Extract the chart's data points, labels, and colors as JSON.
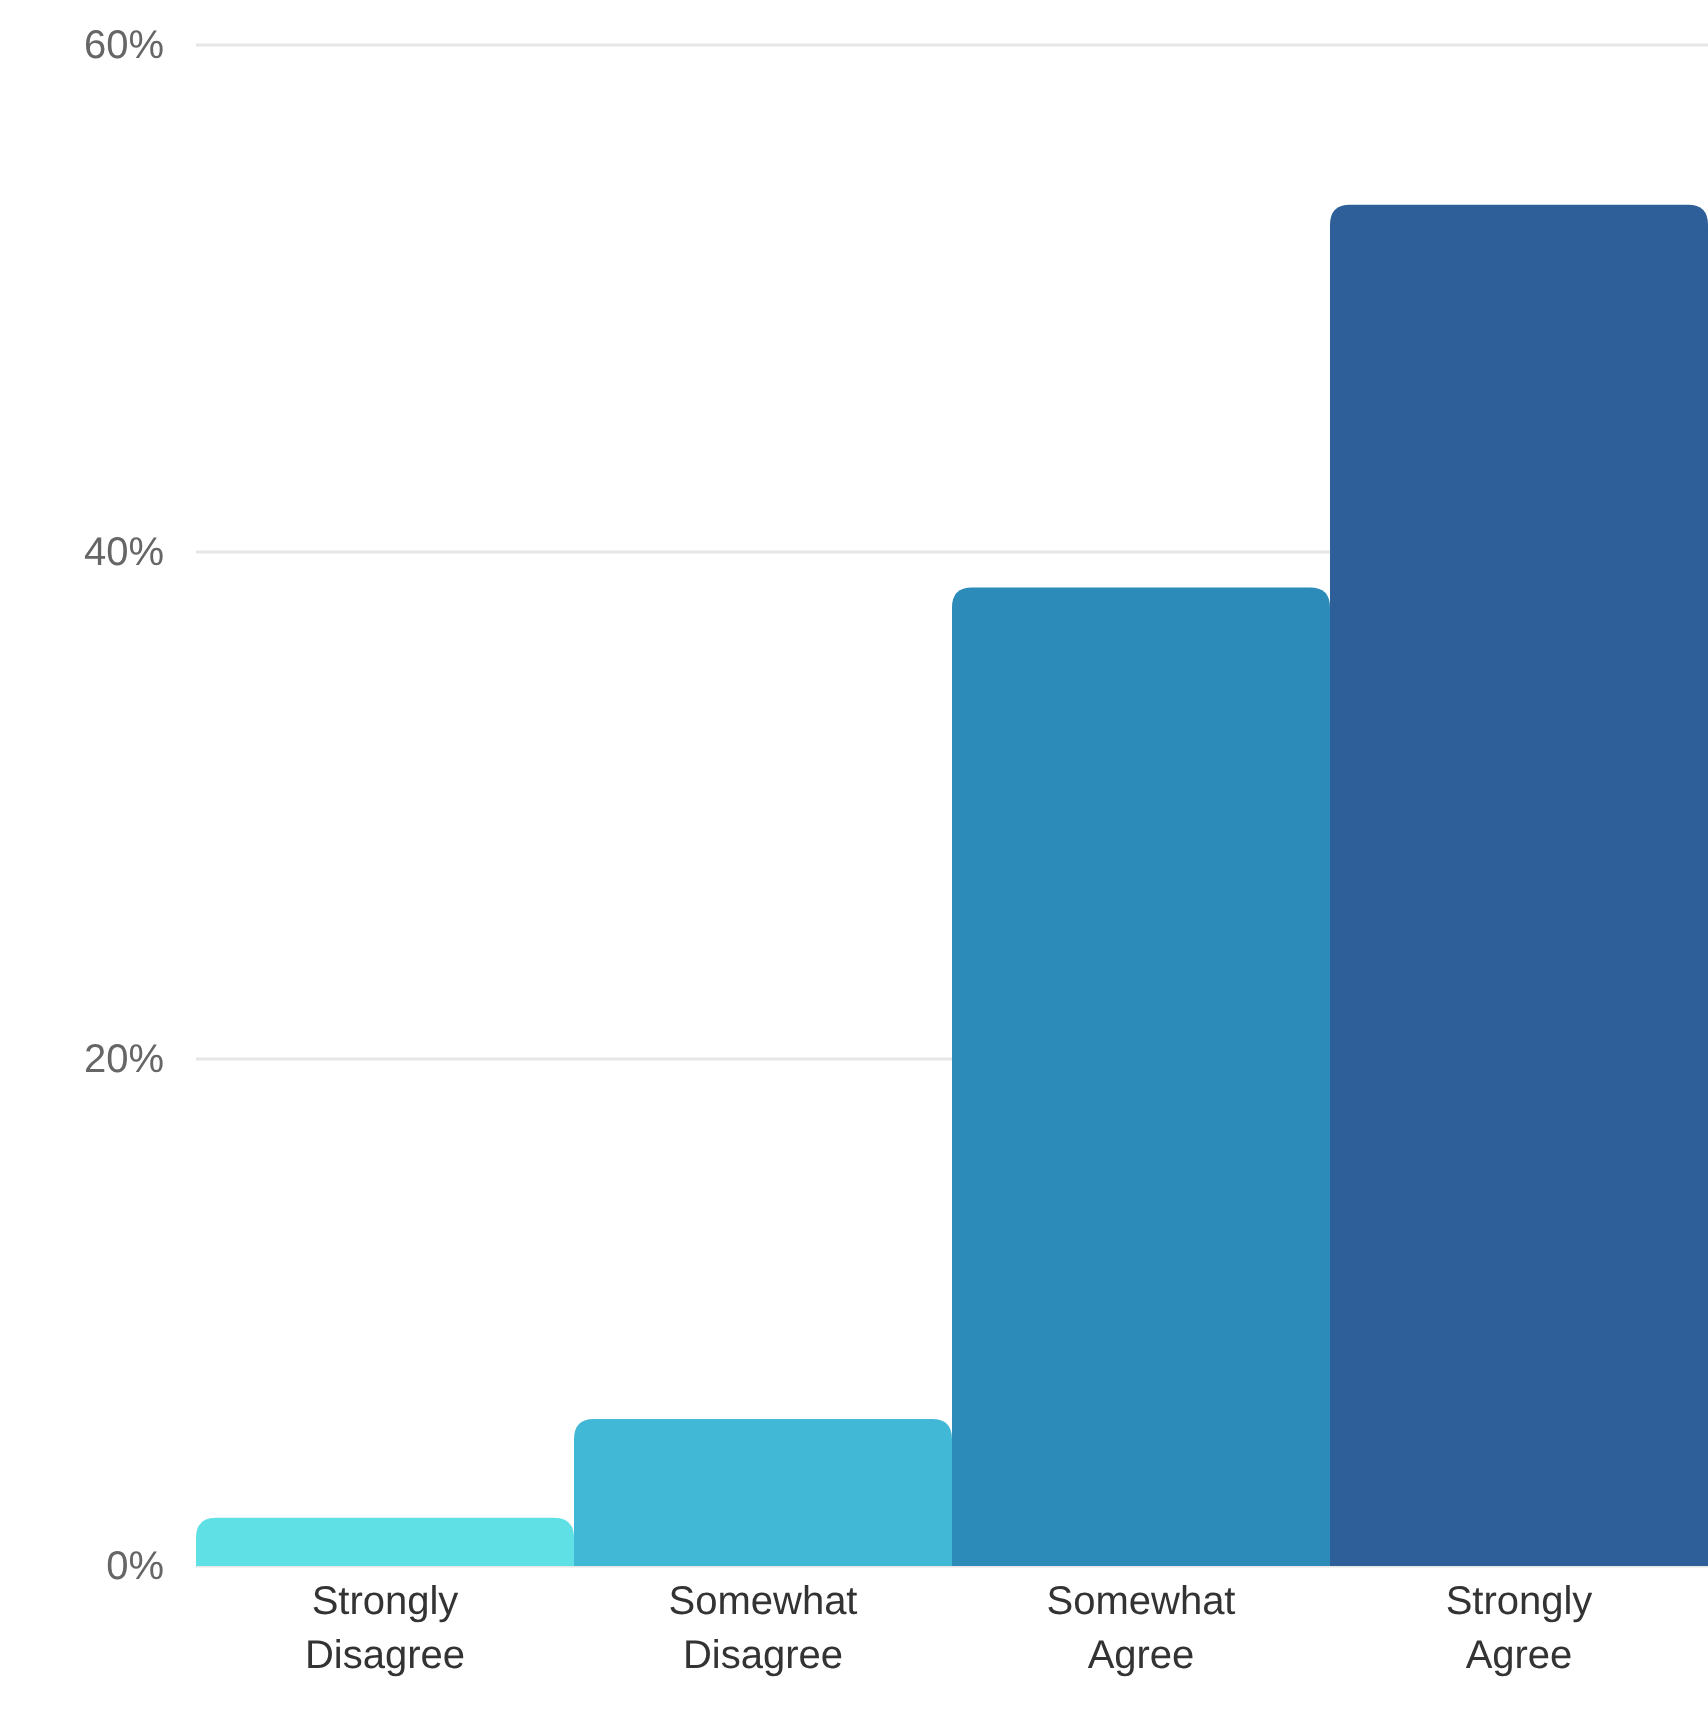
{
  "chart_data": {
    "type": "bar",
    "categories": [
      "Strongly Disagree",
      "Somewhat Disagree",
      "Somewhat Agree",
      "Strongly Agree"
    ],
    "values": [
      1.9,
      5.8,
      38.6,
      53.7
    ],
    "colors": [
      "#5fe0e4",
      "#41b8d5",
      "#2d8bba",
      "#2f5f98"
    ],
    "ylim": [
      0,
      60
    ],
    "yticks": [
      {
        "value": 0,
        "label": "0%"
      },
      {
        "value": 20,
        "label": "20%"
      },
      {
        "value": 40,
        "label": "40%"
      },
      {
        "value": 60,
        "label": "60%"
      }
    ],
    "grid": "y"
  }
}
